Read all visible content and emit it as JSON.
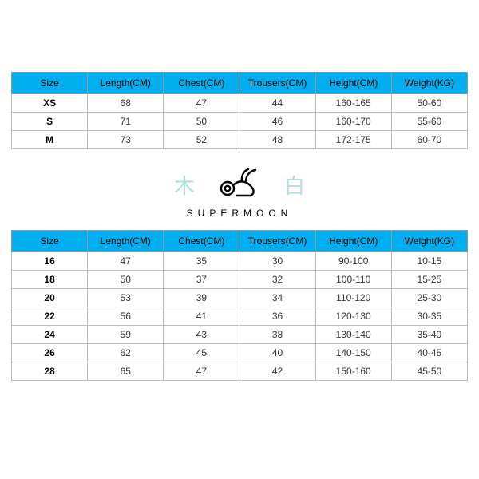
{
  "colors": {
    "header_bg": "#00aeef",
    "header_text": "#000000",
    "cell_text": "#333333",
    "size_text": "#000000",
    "border": "#bbbbbb",
    "cjk_color": "#7fc9c9",
    "background": "#ffffff"
  },
  "typography": {
    "table_fontsize": 12,
    "brand_fontsize": 12,
    "brand_letterspacing": 6,
    "cjk_fontsize": 26
  },
  "top_table": {
    "type": "table",
    "columns": [
      "Size",
      "Length(CM)",
      "Chest(CM)",
      "Trousers(CM)",
      "Height(CM)",
      "Weight(KG)"
    ],
    "rows": [
      [
        "XS",
        "68",
        "47",
        "44",
        "160-165",
        "50-60"
      ],
      [
        "S",
        "71",
        "50",
        "46",
        "160-170",
        "55-60"
      ],
      [
        "M",
        "73",
        "52",
        "48",
        "172-175",
        "60-70"
      ]
    ]
  },
  "brand": {
    "left_char": "木",
    "right_char": "白",
    "name": "SUPERMOON"
  },
  "bottom_table": {
    "type": "table",
    "columns": [
      "Size",
      "Length(CM)",
      "Chest(CM)",
      "Trousers(CM)",
      "Height(CM)",
      "Weight(KG)"
    ],
    "rows": [
      [
        "16",
        "47",
        "35",
        "30",
        "90-100",
        "10-15"
      ],
      [
        "18",
        "50",
        "37",
        "32",
        "100-110",
        "15-25"
      ],
      [
        "20",
        "53",
        "39",
        "34",
        "110-120",
        "25-30"
      ],
      [
        "22",
        "56",
        "41",
        "36",
        "120-130",
        "30-35"
      ],
      [
        "24",
        "59",
        "43",
        "38",
        "130-140",
        "35-40"
      ],
      [
        "26",
        "62",
        "45",
        "40",
        "140-150",
        "40-45"
      ],
      [
        "28",
        "65",
        "47",
        "42",
        "150-160",
        "45-50"
      ]
    ]
  }
}
